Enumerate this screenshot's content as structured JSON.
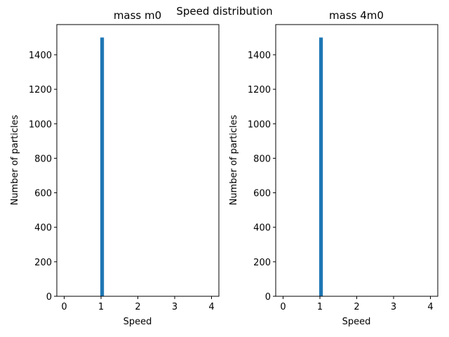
{
  "figure": {
    "suptitle": "Speed distribution",
    "bar_color": "#1f77b4"
  },
  "chart_data": [
    {
      "type": "bar",
      "title": "mass m0",
      "xlabel": "Speed",
      "ylabel": "Number of particles",
      "xlim": [
        -0.2,
        4.2
      ],
      "ylim": [
        0,
        1575
      ],
      "xticks": [
        "0",
        "1",
        "2",
        "3",
        "4"
      ],
      "yticks": [
        "0",
        "200",
        "400",
        "600",
        "800",
        "1000",
        "1200",
        "1400"
      ],
      "bars": [
        {
          "x_start": 0.98,
          "x_end": 1.08,
          "value": 1500
        }
      ],
      "grid": false,
      "legend": "none"
    },
    {
      "type": "bar",
      "title": "mass 4m0",
      "xlabel": "Speed",
      "ylabel": "Number of particles",
      "xlim": [
        -0.2,
        4.2
      ],
      "ylim": [
        0,
        1575
      ],
      "xticks": [
        "0",
        "1",
        "2",
        "3",
        "4"
      ],
      "yticks": [
        "0",
        "200",
        "400",
        "600",
        "800",
        "1000",
        "1200",
        "1400"
      ],
      "bars": [
        {
          "x_start": 0.98,
          "x_end": 1.08,
          "value": 1500
        }
      ],
      "grid": false,
      "legend": "none"
    }
  ]
}
